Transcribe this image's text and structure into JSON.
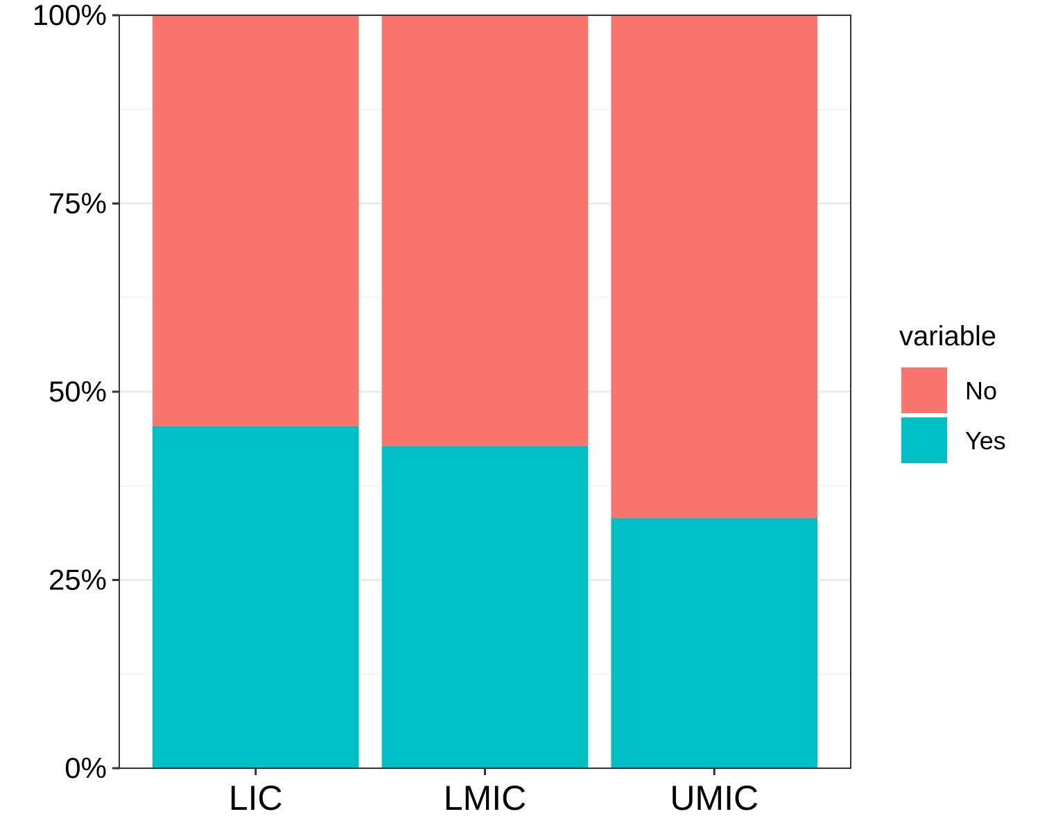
{
  "chart_data": {
    "type": "bar",
    "stacked": true,
    "position": "fill",
    "categories": [
      "LIC",
      "LMIC",
      "UMIC"
    ],
    "series": [
      {
        "name": "No",
        "values": [
          54.6,
          57.2,
          66.8
        ],
        "color": "#F8766D"
      },
      {
        "name": "Yes",
        "values": [
          45.4,
          42.8,
          33.2
        ],
        "color": "#00BFC4"
      }
    ],
    "y_ticks": [
      0,
      25,
      50,
      75,
      100
    ],
    "y_tick_labels": [
      "0%",
      "25%",
      "50%",
      "75%",
      "100%"
    ],
    "ylim": [
      0,
      100
    ],
    "grid": true,
    "legend": {
      "title": "variable",
      "placement": "right"
    },
    "xlabel": "",
    "ylabel": "",
    "title": ""
  }
}
